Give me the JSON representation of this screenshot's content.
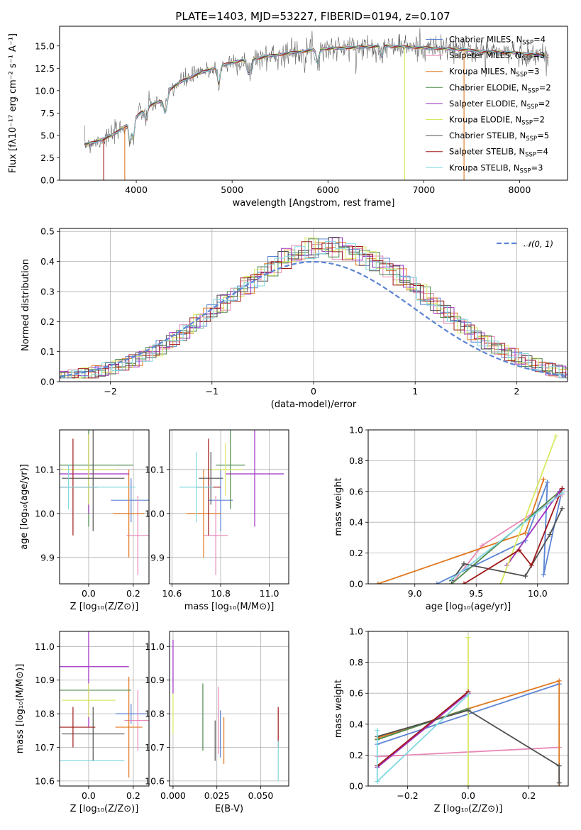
{
  "figure": {
    "title": "PLATE=1403, MJD=53227, FIBERID=0194, z=0.107"
  },
  "colors": {
    "chabrier_miles": "#5b84d4",
    "salpeter_miles": "#e888b8",
    "kroupa_miles": "#e07820",
    "chabrier_elodie": "#4d8a4d",
    "salpeter_elodie": "#a030c0",
    "kroupa_elodie": "#d8e860",
    "chabrier_stelib": "#505050",
    "salpeter_stelib": "#a01818",
    "kroupa_stelib": "#80d8e0",
    "normal_curve": "#5b84d4"
  },
  "legend": {
    "spectrum": [
      {
        "label": "Chabrier MILES, N",
        "sub": "SSP",
        "tail": "=4",
        "color_key": "chabrier_miles"
      },
      {
        "label": "Salpeter MILES, N",
        "sub": "SSP",
        "tail": "=3",
        "color_key": "salpeter_miles"
      },
      {
        "label": "Kroupa MILES, N",
        "sub": "SSP",
        "tail": "=3",
        "color_key": "kroupa_miles"
      },
      {
        "label": "Chabrier ELODIE, N",
        "sub": "SSP",
        "tail": "=2",
        "color_key": "chabrier_elodie"
      },
      {
        "label": "Salpeter ELODIE, N",
        "sub": "SSP",
        "tail": "=2",
        "color_key": "salpeter_elodie"
      },
      {
        "label": "Kroupa ELODIE, N",
        "sub": "SSP",
        "tail": "=2",
        "color_key": "kroupa_elodie"
      },
      {
        "label": "Chabrier STELIB, N",
        "sub": "SSP",
        "tail": "=5",
        "color_key": "chabrier_stelib"
      },
      {
        "label": "Salpeter STELIB, N",
        "sub": "SSP",
        "tail": "=4",
        "color_key": "salpeter_stelib"
      },
      {
        "label": "Kroupa STELIB, N",
        "sub": "SSP",
        "tail": "=3",
        "color_key": "kroupa_stelib"
      }
    ],
    "normal": "𝒩(0, 1)"
  },
  "chart_data": [
    {
      "id": "spectrum",
      "type": "line",
      "xlabel": "wavelength [Angstrom, rest frame]",
      "ylabel": "Flux [fλ10⁻¹⁷ erg cm⁻² s⁻¹ A⁻¹]",
      "xlim": [
        3200,
        8500
      ],
      "ylim": [
        0,
        17.2
      ],
      "xticks": [
        4000,
        5000,
        6000,
        7000,
        8000
      ],
      "yticks": [
        0,
        2.5,
        5.0,
        7.5,
        10.0,
        12.5,
        15.0
      ],
      "ytick_labels": [
        "0.0",
        "2.5",
        "5.0",
        "7.5",
        "10.0",
        "12.5",
        "15.0"
      ],
      "continuum": {
        "x": [
          3460,
          3550,
          3650,
          3750,
          3850,
          3950,
          4050,
          4150,
          4250,
          4350,
          4500,
          4650,
          4800,
          4950,
          5100,
          5250,
          5400,
          5600,
          5800,
          6000,
          6200,
          6400,
          6600,
          6800,
          7000,
          7200,
          7400,
          7600,
          7800,
          8000,
          8200,
          8300
        ],
        "y": [
          4.0,
          4.2,
          4.6,
          5.0,
          5.8,
          6.5,
          7.6,
          8.4,
          8.8,
          10.2,
          11.2,
          11.9,
          12.5,
          13.0,
          13.4,
          13.6,
          13.9,
          14.2,
          14.5,
          14.7,
          14.8,
          14.9,
          15.0,
          14.9,
          14.8,
          14.7,
          14.6,
          14.4,
          14.3,
          14.2,
          14.0,
          13.8
        ]
      }
    },
    {
      "id": "residuals",
      "type": "histogram",
      "xlabel": "(data-model)/error",
      "ylabel": "Normed distribution",
      "xlim": [
        -2.5,
        2.5
      ],
      "ylim": [
        0,
        0.51
      ],
      "xticks": [
        -2,
        -1,
        0,
        1,
        2
      ],
      "xtick_labels": [
        "−2",
        "−1",
        "0",
        "1",
        "2"
      ],
      "yticks": [
        0,
        0.1,
        0.2,
        0.3,
        0.4,
        0.5
      ],
      "ytick_labels": [
        "0.0",
        "0.1",
        "0.2",
        "0.3",
        "0.4",
        "0.5"
      ],
      "normal_mu": 0,
      "normal_sigma": 1
    },
    {
      "id": "age_vs_Z",
      "type": "errorbar",
      "xlabel": "Z [log₁₀(Z/Z⊙)]",
      "ylabel": "age  [log₁₀(age/yr)]",
      "xlim": [
        -0.13,
        0.27
      ],
      "ylim": [
        9.84,
        10.19
      ],
      "xticks": [
        0.0,
        0.2
      ],
      "xtick_labels": [
        "0.0",
        "0.2"
      ],
      "yticks": [
        9.9,
        10.0,
        10.1
      ],
      "ytick_labels": [
        "9.9",
        "10.0",
        "10.1"
      ],
      "points": [
        {
          "c": "chabrier_miles",
          "x": 0.19,
          "y": 10.03,
          "xerr": 0.09,
          "yerr": 0.05
        },
        {
          "c": "salpeter_miles",
          "x": 0.22,
          "y": 9.95,
          "xerr": 0.05,
          "yerr": 0.09
        },
        {
          "c": "kroupa_miles",
          "x": 0.18,
          "y": 10.0,
          "xerr": 0.07,
          "yerr": 0.1
        },
        {
          "c": "chabrier_elodie",
          "x": 0.0,
          "y": 10.11,
          "xerr": 0.2,
          "yerr": 0.14
        },
        {
          "c": "salpeter_elodie",
          "x": 0.0,
          "y": 10.09,
          "xerr": 0.18,
          "yerr": 0.09
        },
        {
          "c": "kroupa_elodie",
          "x": 0.0,
          "y": 10.1,
          "xerr": 0.12,
          "yerr": 0.08
        },
        {
          "c": "chabrier_stelib",
          "x": 0.02,
          "y": 10.08,
          "xerr": 0.14,
          "yerr": 0.12
        },
        {
          "c": "salpeter_stelib",
          "x": -0.07,
          "y": 10.06,
          "xerr": 0.11,
          "yerr": 0.11
        },
        {
          "c": "kroupa_stelib",
          "x": -0.09,
          "y": 10.06,
          "xerr": 0.3,
          "yerr": 0.05
        }
      ]
    },
    {
      "id": "age_vs_mass",
      "type": "errorbar",
      "xlabel": "mass [log₁₀(M/M⊙)]",
      "xlim": [
        10.59,
        11.08
      ],
      "ylim": [
        9.84,
        10.19
      ],
      "xticks": [
        10.6,
        10.8,
        11.0
      ],
      "xtick_labels": [
        "10.6",
        "10.8",
        "11.0"
      ],
      "yticks": [
        9.9,
        10.0,
        10.1
      ],
      "ytick_labels": [
        "9.9",
        "10.0",
        "10.1"
      ],
      "points": [
        {
          "c": "chabrier_miles",
          "x": 10.8,
          "y": 10.03,
          "xerr": 0.05,
          "yerr": 0.07
        },
        {
          "c": "salpeter_miles",
          "x": 10.78,
          "y": 9.95,
          "xerr": 0.05,
          "yerr": 0.09
        },
        {
          "c": "kroupa_miles",
          "x": 10.73,
          "y": 10.0,
          "xerr": 0.07,
          "yerr": 0.1
        },
        {
          "c": "chabrier_elodie",
          "x": 10.84,
          "y": 10.11,
          "xerr": 0.06,
          "yerr": 0.1
        },
        {
          "c": "salpeter_elodie",
          "x": 10.94,
          "y": 10.09,
          "xerr": 0.12,
          "yerr": 0.12
        },
        {
          "c": "kroupa_elodie",
          "x": 10.82,
          "y": 10.1,
          "xerr": 0.07,
          "yerr": 0.06
        },
        {
          "c": "chabrier_stelib",
          "x": 10.76,
          "y": 10.08,
          "xerr": 0.05,
          "yerr": 0.06
        },
        {
          "c": "salpeter_stelib",
          "x": 10.75,
          "y": 10.06,
          "xerr": 0.05,
          "yerr": 0.11
        },
        {
          "c": "kroupa_stelib",
          "x": 10.7,
          "y": 10.06,
          "xerr": 0.07,
          "yerr": 0.08
        }
      ]
    },
    {
      "id": "mass_weight_vs_age",
      "type": "line",
      "xlabel": "age  [log₁₀(age/yr)]",
      "ylabel": "mass weight",
      "xlim": [
        8.62,
        10.25
      ],
      "ylim": [
        0,
        1.0
      ],
      "xticks": [
        9.0,
        9.5,
        10.0
      ],
      "xtick_labels": [
        "9.0",
        "9.5",
        "10.0"
      ],
      "yticks": [
        0,
        0.2,
        0.4,
        0.6,
        0.8,
        1.0
      ],
      "ytick_labels": [
        "0.0",
        "0.2",
        "0.4",
        "0.6",
        "0.8",
        "1.0"
      ],
      "series": [
        {
          "c": "chabrier_miles",
          "x": [
            9.18,
            9.9,
            10.08,
            10.05,
            10.2
          ],
          "y": [
            0.0,
            0.28,
            0.66,
            0.06,
            0.61
          ]
        },
        {
          "c": "salpeter_miles",
          "x": [
            9.3,
            9.55,
            10.2
          ],
          "y": [
            0.0,
            0.25,
            0.58
          ]
        },
        {
          "c": "kroupa_miles",
          "x": [
            8.7,
            9.9,
            10.05
          ],
          "y": [
            0.0,
            0.33,
            0.68
          ]
        },
        {
          "c": "chabrier_elodie",
          "x": [
            9.3,
            10.18
          ],
          "y": [
            0.0,
            0.6
          ]
        },
        {
          "c": "salpeter_elodie",
          "x": [
            9.75,
            10.18
          ],
          "y": [
            0.12,
            0.6
          ]
        },
        {
          "c": "kroupa_elodie",
          "x": [
            9.7,
            10.15
          ],
          "y": [
            0.0,
            0.96
          ]
        },
        {
          "c": "chabrier_stelib",
          "x": [
            9.3,
            9.4,
            9.9,
            10.1,
            10.2
          ],
          "y": [
            0.02,
            0.13,
            0.05,
            0.32,
            0.49
          ]
        },
        {
          "c": "salpeter_stelib",
          "x": [
            9.4,
            9.85,
            9.95,
            10.2
          ],
          "y": [
            0.0,
            0.22,
            0.12,
            0.62
          ]
        },
        {
          "c": "kroupa_stelib",
          "x": [
            9.3,
            10.2
          ],
          "y": [
            0.03,
            0.59
          ]
        }
      ]
    },
    {
      "id": "mass_vs_Z",
      "type": "errorbar",
      "xlabel": "Z [log₁₀(Z/Z⊙)]",
      "ylabel": "mass [log₁₀(M/M⊙)]",
      "xlim": [
        -0.13,
        0.27
      ],
      "ylim": [
        10.585,
        11.045
      ],
      "xticks": [
        0.0,
        0.2
      ],
      "xtick_labels": [
        "0.0",
        "0.2"
      ],
      "yticks": [
        10.6,
        10.7,
        10.8,
        10.9,
        11.0
      ],
      "ytick_labels": [
        "10.6",
        "10.7",
        "10.8",
        "10.9",
        "11.0"
      ],
      "points": [
        {
          "c": "chabrier_miles",
          "x": 0.19,
          "y": 10.8,
          "xerr": 0.07,
          "yerr": 0.03
        },
        {
          "c": "salpeter_miles",
          "x": 0.22,
          "y": 10.78,
          "xerr": 0.06,
          "yerr": 0.09
        },
        {
          "c": "kroupa_miles",
          "x": 0.18,
          "y": 10.76,
          "xerr": 0.06,
          "yerr": 0.15
        },
        {
          "c": "chabrier_elodie",
          "x": 0.0,
          "y": 10.87,
          "xerr": 0.19,
          "yerr": 0.0
        },
        {
          "c": "salpeter_elodie",
          "x": 0.0,
          "y": 10.94,
          "xerr": 0.18,
          "yerr": 0.18
        },
        {
          "c": "kroupa_elodie",
          "x": 0.0,
          "y": 10.84,
          "xerr": 0.12,
          "yerr": 0.05
        },
        {
          "c": "chabrier_stelib",
          "x": 0.02,
          "y": 10.74,
          "xerr": 0.14,
          "yerr": 0.08
        },
        {
          "c": "salpeter_stelib",
          "x": -0.07,
          "y": 10.76,
          "xerr": 0.1,
          "yerr": 0.06
        },
        {
          "c": "kroupa_stelib",
          "x": -0.09,
          "y": 10.66,
          "xerr": 0.25,
          "yerr": 0.0
        }
      ]
    },
    {
      "id": "mass_vs_ebv",
      "type": "errorbar",
      "xlabel": "E(B-V)",
      "xlim": [
        -0.002,
        0.066
      ],
      "ylim": [
        10.585,
        11.045
      ],
      "xticks": [
        0.0,
        0.025,
        0.05
      ],
      "xtick_labels": [
        "0.000",
        "0.025",
        "0.050"
      ],
      "yticks": [
        10.6,
        10.7,
        10.8,
        10.9,
        11.0
      ],
      "ytick_labels": [
        "10.6",
        "10.7",
        "10.8",
        "10.9",
        "11.0"
      ],
      "points": [
        {
          "c": "chabrier_miles",
          "x": 0.027,
          "y": 10.74,
          "xerr": 0,
          "yerr": 0.07
        },
        {
          "c": "salpeter_miles",
          "x": 0.026,
          "y": 10.78,
          "xerr": 0,
          "yerr": 0.1
        },
        {
          "c": "kroupa_miles",
          "x": 0.029,
          "y": 10.72,
          "xerr": 0,
          "yerr": 0.07
        },
        {
          "c": "chabrier_elodie",
          "x": 0.017,
          "y": 10.79,
          "xerr": 0,
          "yerr": 0.1
        },
        {
          "c": "salpeter_elodie",
          "x": 0.0,
          "y": 10.94,
          "xerr": 0,
          "yerr": 0.08
        },
        {
          "c": "kroupa_elodie",
          "x": 0.0,
          "y": 10.8,
          "xerr": 0,
          "yerr": 0.06
        },
        {
          "c": "chabrier_stelib",
          "x": 0.024,
          "y": 10.72,
          "xerr": 0,
          "yerr": 0.06
        },
        {
          "c": "salpeter_stelib",
          "x": 0.06,
          "y": 10.76,
          "xerr": 0,
          "yerr": 0.06
        },
        {
          "c": "kroupa_stelib",
          "x": 0.06,
          "y": 10.66,
          "xerr": 0,
          "yerr": 0.06
        }
      ]
    },
    {
      "id": "mass_weight_vs_Z",
      "type": "line",
      "xlabel": "Z [log₁₀(Z/Z⊙)]",
      "ylabel": "mass weight",
      "xlim": [
        -0.33,
        0.33
      ],
      "ylim": [
        0,
        1.0
      ],
      "xticks": [
        -0.2,
        0.0,
        0.2
      ],
      "xtick_labels": [
        "−0.2",
        "0.0",
        "0.2"
      ],
      "yticks": [
        0,
        0.2,
        0.4,
        0.6,
        0.8,
        1.0
      ],
      "ytick_labels": [
        "0.0",
        "0.2",
        "0.4",
        "0.6",
        "0.8",
        "1.0"
      ],
      "series": [
        {
          "c": "chabrier_miles",
          "x": [
            -0.3,
            0.3
          ],
          "y": [
            0.27,
            0.66
          ]
        },
        {
          "c": "salpeter_miles",
          "x": [
            -0.3,
            0.3
          ],
          "y": [
            0.19,
            0.25
          ]
        },
        {
          "c": "kroupa_miles",
          "x": [
            -0.3,
            0.0,
            0.3,
            0.3
          ],
          "y": [
            0.31,
            0.5,
            0.68,
            0.0
          ]
        },
        {
          "c": "chabrier_elodie",
          "x": [
            -0.3,
            0.0
          ],
          "y": [
            0.3,
            0.5
          ]
        },
        {
          "c": "salpeter_elodie",
          "x": [
            -0.3,
            0.0
          ],
          "y": [
            0.12,
            0.6
          ]
        },
        {
          "c": "kroupa_elodie",
          "x": [
            0.0,
            0.0
          ],
          "y": [
            0.0,
            0.96
          ]
        },
        {
          "c": "chabrier_stelib",
          "x": [
            -0.3,
            0.0,
            0.3,
            0.3
          ],
          "y": [
            0.32,
            0.49,
            0.13,
            0.02
          ]
        },
        {
          "c": "salpeter_stelib",
          "x": [
            -0.3,
            0.0
          ],
          "y": [
            0.13,
            0.61
          ]
        },
        {
          "c": "kroupa_stelib",
          "x": [
            -0.3,
            -0.3,
            0.0
          ],
          "y": [
            0.36,
            0.03,
            0.59
          ]
        }
      ]
    }
  ]
}
